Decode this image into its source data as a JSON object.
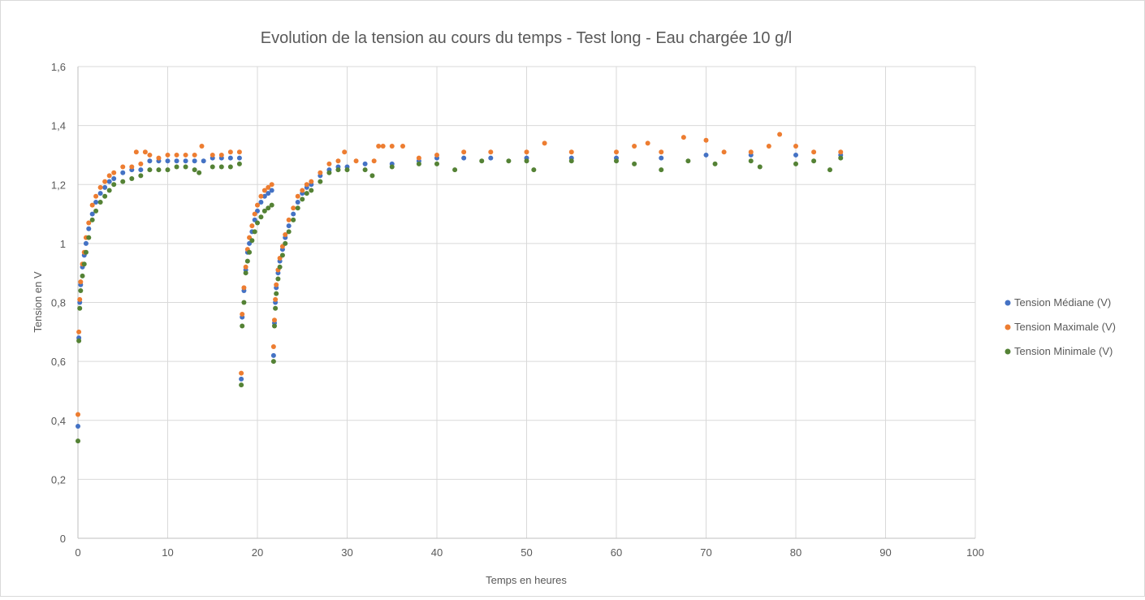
{
  "chart_data": {
    "type": "scatter",
    "title": "Evolution de la tension au cours du temps - Test long - Eau chargée 10 g/l",
    "xlabel": "Temps en heures",
    "ylabel": "Tension en V",
    "xlim": [
      0,
      100
    ],
    "ylim": [
      0,
      1.6
    ],
    "x_ticks": [
      0,
      10,
      20,
      30,
      40,
      50,
      60,
      70,
      80,
      90,
      100
    ],
    "x_tick_labels": [
      "0",
      "10",
      "20",
      "30",
      "40",
      "50",
      "60",
      "70",
      "80",
      "90",
      "100"
    ],
    "y_ticks": [
      0,
      0.2,
      0.4,
      0.6,
      0.8,
      1.0,
      1.2,
      1.4,
      1.6
    ],
    "y_tick_labels": [
      "0",
      "0,2",
      "0,4",
      "0,6",
      "0,8",
      "1",
      "1,2",
      "1,4",
      "1,6"
    ],
    "grid": true,
    "legend_position": "right",
    "series": [
      {
        "name": "Tension Médiane (V)",
        "color": "#4472c4",
        "points": [
          [
            0.0,
            0.38
          ],
          [
            0.1,
            0.68
          ],
          [
            0.2,
            0.8
          ],
          [
            0.3,
            0.86
          ],
          [
            0.5,
            0.92
          ],
          [
            0.7,
            0.96
          ],
          [
            0.9,
            1.0
          ],
          [
            1.2,
            1.05
          ],
          [
            1.6,
            1.1
          ],
          [
            2.0,
            1.14
          ],
          [
            2.5,
            1.17
          ],
          [
            3.0,
            1.19
          ],
          [
            3.5,
            1.21
          ],
          [
            4.0,
            1.22
          ],
          [
            5.0,
            1.24
          ],
          [
            6.0,
            1.25
          ],
          [
            7.0,
            1.25
          ],
          [
            8.0,
            1.28
          ],
          [
            9.0,
            1.28
          ],
          [
            10.0,
            1.28
          ],
          [
            11.0,
            1.28
          ],
          [
            12.0,
            1.28
          ],
          [
            13.0,
            1.28
          ],
          [
            14.0,
            1.28
          ],
          [
            15.0,
            1.29
          ],
          [
            16.0,
            1.29
          ],
          [
            17.0,
            1.29
          ],
          [
            18.0,
            1.29
          ],
          [
            18.2,
            0.54
          ],
          [
            18.3,
            0.75
          ],
          [
            18.5,
            0.84
          ],
          [
            18.7,
            0.91
          ],
          [
            18.9,
            0.97
          ],
          [
            19.1,
            1.0
          ],
          [
            19.4,
            1.04
          ],
          [
            19.7,
            1.08
          ],
          [
            20.0,
            1.11
          ],
          [
            20.4,
            1.14
          ],
          [
            20.8,
            1.16
          ],
          [
            21.2,
            1.17
          ],
          [
            21.6,
            1.18
          ],
          [
            21.8,
            0.62
          ],
          [
            21.9,
            0.73
          ],
          [
            22.0,
            0.8
          ],
          [
            22.1,
            0.85
          ],
          [
            22.3,
            0.9
          ],
          [
            22.5,
            0.94
          ],
          [
            22.8,
            0.98
          ],
          [
            23.1,
            1.02
          ],
          [
            23.5,
            1.06
          ],
          [
            24.0,
            1.1
          ],
          [
            24.5,
            1.14
          ],
          [
            25.0,
            1.17
          ],
          [
            25.5,
            1.19
          ],
          [
            26.0,
            1.2
          ],
          [
            27.0,
            1.23
          ],
          [
            28.0,
            1.25
          ],
          [
            29.0,
            1.26
          ],
          [
            30.0,
            1.26
          ],
          [
            32.0,
            1.27
          ],
          [
            35.0,
            1.27
          ],
          [
            38.0,
            1.28
          ],
          [
            40.0,
            1.29
          ],
          [
            43.0,
            1.29
          ],
          [
            46.0,
            1.29
          ],
          [
            50.0,
            1.29
          ],
          [
            55.0,
            1.29
          ],
          [
            60.0,
            1.29
          ],
          [
            65.0,
            1.29
          ],
          [
            70.0,
            1.3
          ],
          [
            75.0,
            1.3
          ],
          [
            80.0,
            1.3
          ],
          [
            85.0,
            1.3
          ]
        ]
      },
      {
        "name": "Tension Maximale (V)",
        "color": "#ed7d31",
        "points": [
          [
            0.0,
            0.42
          ],
          [
            0.1,
            0.7
          ],
          [
            0.2,
            0.81
          ],
          [
            0.3,
            0.87
          ],
          [
            0.5,
            0.93
          ],
          [
            0.7,
            0.97
          ],
          [
            0.9,
            1.02
          ],
          [
            1.2,
            1.07
          ],
          [
            1.6,
            1.13
          ],
          [
            2.0,
            1.16
          ],
          [
            2.5,
            1.19
          ],
          [
            3.0,
            1.21
          ],
          [
            3.5,
            1.23
          ],
          [
            4.0,
            1.24
          ],
          [
            5.0,
            1.26
          ],
          [
            6.0,
            1.26
          ],
          [
            6.5,
            1.31
          ],
          [
            7.0,
            1.27
          ],
          [
            7.5,
            1.31
          ],
          [
            8.0,
            1.3
          ],
          [
            9.0,
            1.29
          ],
          [
            10.0,
            1.3
          ],
          [
            11.0,
            1.3
          ],
          [
            12.0,
            1.3
          ],
          [
            13.0,
            1.3
          ],
          [
            13.8,
            1.33
          ],
          [
            15.0,
            1.3
          ],
          [
            16.0,
            1.3
          ],
          [
            17.0,
            1.31
          ],
          [
            18.0,
            1.31
          ],
          [
            18.2,
            0.56
          ],
          [
            18.3,
            0.76
          ],
          [
            18.5,
            0.85
          ],
          [
            18.7,
            0.92
          ],
          [
            18.9,
            0.98
          ],
          [
            19.1,
            1.02
          ],
          [
            19.4,
            1.06
          ],
          [
            19.7,
            1.1
          ],
          [
            20.0,
            1.13
          ],
          [
            20.4,
            1.16
          ],
          [
            20.8,
            1.18
          ],
          [
            21.2,
            1.19
          ],
          [
            21.6,
            1.2
          ],
          [
            21.8,
            0.65
          ],
          [
            21.9,
            0.74
          ],
          [
            22.0,
            0.81
          ],
          [
            22.1,
            0.86
          ],
          [
            22.3,
            0.91
          ],
          [
            22.5,
            0.95
          ],
          [
            22.8,
            0.99
          ],
          [
            23.1,
            1.03
          ],
          [
            23.5,
            1.08
          ],
          [
            24.0,
            1.12
          ],
          [
            24.5,
            1.16
          ],
          [
            25.0,
            1.18
          ],
          [
            25.5,
            1.2
          ],
          [
            26.0,
            1.21
          ],
          [
            27.0,
            1.24
          ],
          [
            28.0,
            1.27
          ],
          [
            29.0,
            1.28
          ],
          [
            29.7,
            1.31
          ],
          [
            31.0,
            1.28
          ],
          [
            33.0,
            1.28
          ],
          [
            33.5,
            1.33
          ],
          [
            34.0,
            1.33
          ],
          [
            35.0,
            1.33
          ],
          [
            36.2,
            1.33
          ],
          [
            38.0,
            1.29
          ],
          [
            40.0,
            1.3
          ],
          [
            43.0,
            1.31
          ],
          [
            46.0,
            1.31
          ],
          [
            50.0,
            1.31
          ],
          [
            52.0,
            1.34
          ],
          [
            55.0,
            1.31
          ],
          [
            60.0,
            1.31
          ],
          [
            62.0,
            1.33
          ],
          [
            63.5,
            1.34
          ],
          [
            65.0,
            1.31
          ],
          [
            67.5,
            1.36
          ],
          [
            70.0,
            1.35
          ],
          [
            72.0,
            1.31
          ],
          [
            75.0,
            1.31
          ],
          [
            77.0,
            1.33
          ],
          [
            78.2,
            1.37
          ],
          [
            80.0,
            1.33
          ],
          [
            82.0,
            1.31
          ],
          [
            85.0,
            1.31
          ]
        ]
      },
      {
        "name": "Tension Minimale (V)",
        "color": "#548235",
        "points": [
          [
            0.0,
            0.33
          ],
          [
            0.1,
            0.67
          ],
          [
            0.2,
            0.78
          ],
          [
            0.3,
            0.84
          ],
          [
            0.5,
            0.89
          ],
          [
            0.7,
            0.93
          ],
          [
            0.9,
            0.97
          ],
          [
            1.2,
            1.02
          ],
          [
            1.6,
            1.08
          ],
          [
            2.0,
            1.11
          ],
          [
            2.5,
            1.14
          ],
          [
            3.0,
            1.16
          ],
          [
            3.5,
            1.18
          ],
          [
            4.0,
            1.2
          ],
          [
            5.0,
            1.21
          ],
          [
            6.0,
            1.22
          ],
          [
            7.0,
            1.23
          ],
          [
            8.0,
            1.25
          ],
          [
            9.0,
            1.25
          ],
          [
            10.0,
            1.25
          ],
          [
            11.0,
            1.26
          ],
          [
            12.0,
            1.26
          ],
          [
            13.0,
            1.25
          ],
          [
            13.5,
            1.24
          ],
          [
            15.0,
            1.26
          ],
          [
            16.0,
            1.26
          ],
          [
            17.0,
            1.26
          ],
          [
            18.0,
            1.27
          ],
          [
            18.2,
            0.52
          ],
          [
            18.3,
            0.72
          ],
          [
            18.5,
            0.8
          ],
          [
            18.7,
            0.9
          ],
          [
            18.9,
            0.94
          ],
          [
            19.1,
            0.97
          ],
          [
            19.4,
            1.01
          ],
          [
            19.7,
            1.04
          ],
          [
            20.0,
            1.07
          ],
          [
            20.4,
            1.09
          ],
          [
            20.8,
            1.11
          ],
          [
            21.2,
            1.12
          ],
          [
            21.6,
            1.13
          ],
          [
            21.8,
            0.6
          ],
          [
            21.9,
            0.72
          ],
          [
            22.0,
            0.78
          ],
          [
            22.1,
            0.83
          ],
          [
            22.3,
            0.88
          ],
          [
            22.5,
            0.92
          ],
          [
            22.8,
            0.96
          ],
          [
            23.1,
            1.0
          ],
          [
            23.5,
            1.04
          ],
          [
            24.0,
            1.08
          ],
          [
            24.5,
            1.12
          ],
          [
            25.0,
            1.15
          ],
          [
            25.5,
            1.17
          ],
          [
            26.0,
            1.18
          ],
          [
            27.0,
            1.21
          ],
          [
            28.0,
            1.24
          ],
          [
            29.0,
            1.25
          ],
          [
            30.0,
            1.25
          ],
          [
            32.0,
            1.25
          ],
          [
            32.8,
            1.23
          ],
          [
            35.0,
            1.26
          ],
          [
            38.0,
            1.27
          ],
          [
            40.0,
            1.27
          ],
          [
            42.0,
            1.25
          ],
          [
            45.0,
            1.28
          ],
          [
            48.0,
            1.28
          ],
          [
            50.0,
            1.28
          ],
          [
            50.8,
            1.25
          ],
          [
            55.0,
            1.28
          ],
          [
            60.0,
            1.28
          ],
          [
            62.0,
            1.27
          ],
          [
            65.0,
            1.25
          ],
          [
            68.0,
            1.28
          ],
          [
            71.0,
            1.27
          ],
          [
            75.0,
            1.28
          ],
          [
            76.0,
            1.26
          ],
          [
            80.0,
            1.27
          ],
          [
            82.0,
            1.28
          ],
          [
            83.8,
            1.25
          ],
          [
            85.0,
            1.29
          ]
        ]
      }
    ]
  }
}
